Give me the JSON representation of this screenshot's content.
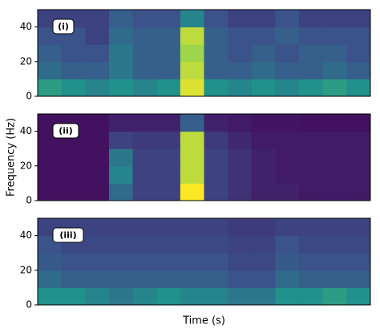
{
  "colormap": [
    "#440154",
    "#3b528b",
    "#21918c",
    "#5ec962",
    "#fde725"
  ],
  "chart_data": [
    {
      "type": "heatmap",
      "label": "(i)",
      "ylim": [
        0,
        50
      ],
      "yticks": [
        0,
        20,
        40
      ],
      "z": [
        [
          0.55,
          0.5,
          0.45,
          0.5,
          0.45,
          0.5,
          0.95,
          0.5,
          0.45,
          0.5,
          0.45,
          0.5,
          0.55,
          0.5
        ],
        [
          0.35,
          0.3,
          0.3,
          0.4,
          0.3,
          0.3,
          0.9,
          0.3,
          0.3,
          0.35,
          0.3,
          0.3,
          0.35,
          0.3
        ],
        [
          0.3,
          0.25,
          0.25,
          0.4,
          0.3,
          0.3,
          0.85,
          0.3,
          0.25,
          0.3,
          0.25,
          0.3,
          0.3,
          0.25
        ],
        [
          0.25,
          0.25,
          0.2,
          0.35,
          0.3,
          0.3,
          0.9,
          0.3,
          0.25,
          0.25,
          0.3,
          0.25,
          0.25,
          0.25
        ],
        [
          0.2,
          0.2,
          0.2,
          0.3,
          0.25,
          0.25,
          0.45,
          0.25,
          0.2,
          0.2,
          0.25,
          0.2,
          0.2,
          0.2
        ]
      ]
    },
    {
      "type": "heatmap",
      "label": "(ii)",
      "ylabel": "Frequency (Hz)",
      "ylim": [
        0,
        50
      ],
      "yticks": [
        0,
        20,
        40
      ],
      "z": [
        [
          0.05,
          0.05,
          0.05,
          0.35,
          0.2,
          0.2,
          1,
          0.2,
          0.15,
          0.1,
          0.1,
          0.08,
          0.08,
          0.08
        ],
        [
          0.05,
          0.05,
          0.05,
          0.45,
          0.2,
          0.2,
          0.9,
          0.2,
          0.15,
          0.1,
          0.08,
          0.08,
          0.08,
          0.08
        ],
        [
          0.05,
          0.05,
          0.05,
          0.4,
          0.2,
          0.2,
          0.9,
          0.2,
          0.15,
          0.1,
          0.08,
          0.08,
          0.08,
          0.08
        ],
        [
          0.05,
          0.05,
          0.05,
          0.2,
          0.18,
          0.18,
          0.9,
          0.18,
          0.12,
          0.08,
          0.08,
          0.08,
          0.08,
          0.08
        ],
        [
          0.05,
          0.05,
          0.05,
          0.1,
          0.1,
          0.1,
          0.3,
          0.1,
          0.08,
          0.06,
          0.06,
          0.05,
          0.05,
          0.05
        ]
      ]
    },
    {
      "type": "heatmap",
      "label": "(iii)",
      "xlabel": "Time (s)",
      "ylim": [
        0,
        50
      ],
      "yticks": [
        0,
        20,
        40
      ],
      "z": [
        [
          0.5,
          0.5,
          0.45,
          0.4,
          0.45,
          0.5,
          0.45,
          0.45,
          0.4,
          0.4,
          0.5,
          0.5,
          0.55,
          0.5
        ],
        [
          0.35,
          0.3,
          0.3,
          0.3,
          0.3,
          0.3,
          0.3,
          0.3,
          0.25,
          0.25,
          0.35,
          0.3,
          0.3,
          0.3
        ],
        [
          0.28,
          0.25,
          0.25,
          0.25,
          0.25,
          0.25,
          0.25,
          0.25,
          0.22,
          0.22,
          0.28,
          0.25,
          0.25,
          0.25
        ],
        [
          0.25,
          0.22,
          0.22,
          0.22,
          0.22,
          0.22,
          0.22,
          0.22,
          0.2,
          0.2,
          0.25,
          0.22,
          0.22,
          0.22
        ],
        [
          0.2,
          0.2,
          0.2,
          0.2,
          0.2,
          0.2,
          0.2,
          0.2,
          0.18,
          0.18,
          0.2,
          0.2,
          0.2,
          0.2
        ]
      ]
    }
  ]
}
